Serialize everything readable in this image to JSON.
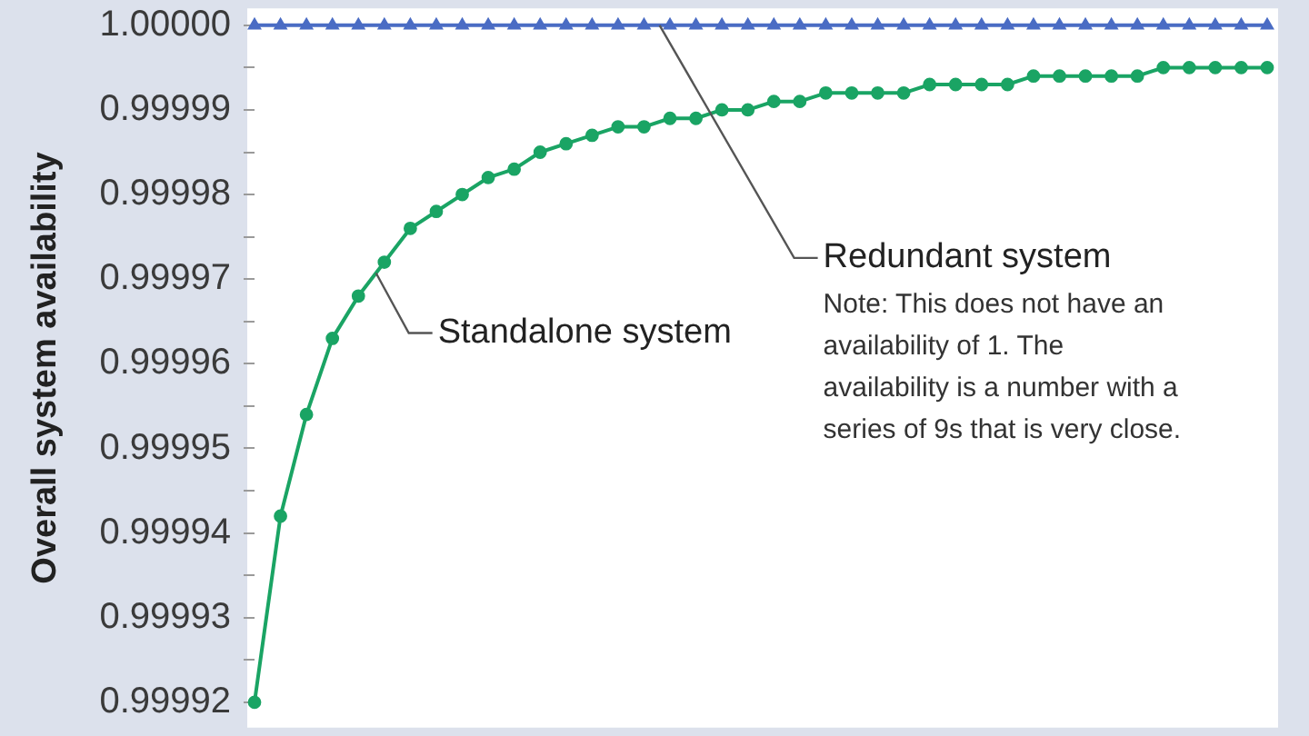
{
  "chart_data": {
    "type": "line",
    "ylabel": "Overall system availability",
    "tick_labels": "y",
    "categories": [
      null,
      null,
      null,
      null,
      null,
      null,
      null,
      null,
      null,
      null,
      null,
      null,
      null,
      null,
      null,
      null,
      null,
      null,
      null,
      null,
      null,
      null,
      null,
      null,
      null,
      null,
      null,
      null,
      null,
      null,
      null,
      null,
      null,
      null,
      null,
      null,
      null,
      null,
      null,
      null
    ],
    "series": [
      {
        "name": "Redundant system",
        "color": "#4a6cc4",
        "marker": "triangle",
        "values": [
          1,
          1,
          1,
          1,
          1,
          1,
          1,
          1,
          1,
          1,
          1,
          1,
          1,
          1,
          1,
          1,
          1,
          1,
          1,
          1,
          1,
          1,
          1,
          1,
          1,
          1,
          1,
          1,
          1,
          1,
          1,
          1,
          1,
          1,
          1,
          1,
          1,
          1,
          1,
          1
        ]
      },
      {
        "name": "Standalone system",
        "color": "#1aa464",
        "marker": "circle",
        "values": [
          0.99992,
          0.999942,
          0.999954,
          0.999963,
          0.999968,
          0.999972,
          0.999976,
          0.999978,
          0.99998,
          0.999982,
          0.999983,
          0.999985,
          0.999986,
          0.999987,
          0.999988,
          0.999988,
          0.999989,
          0.999989,
          0.99999,
          0.99999,
          0.999991,
          0.999991,
          0.999992,
          0.999992,
          0.999992,
          0.999992,
          0.999993,
          0.999993,
          0.999993,
          0.999993,
          0.999994,
          0.999994,
          0.999994,
          0.999994,
          0.999994,
          0.999995,
          0.999995,
          0.999995,
          0.999995,
          0.999995
        ]
      }
    ],
    "ylim": [
      0.999917,
      1.000002
    ],
    "yticks": [
      0.99992,
      {
        "value": 0.999925,
        "label": null
      },
      0.99993,
      {
        "value": 0.999935,
        "label": null
      },
      0.99994,
      {
        "value": 0.999945,
        "label": null
      },
      0.99995,
      {
        "value": 0.999955,
        "label": null
      },
      0.99996,
      {
        "value": 0.999965,
        "label": null
      },
      0.99997,
      {
        "value": 0.999975,
        "label": null
      },
      0.99998,
      {
        "value": 0.999985,
        "label": null
      },
      0.99999,
      {
        "value": 0.999995,
        "label": null
      },
      {
        "value": 1,
        "label": "1.00000"
      }
    ],
    "annotations": [
      "Note: This does not have an availability of 1. The availability is a number with a series of 9s that is very close."
    ]
  }
}
